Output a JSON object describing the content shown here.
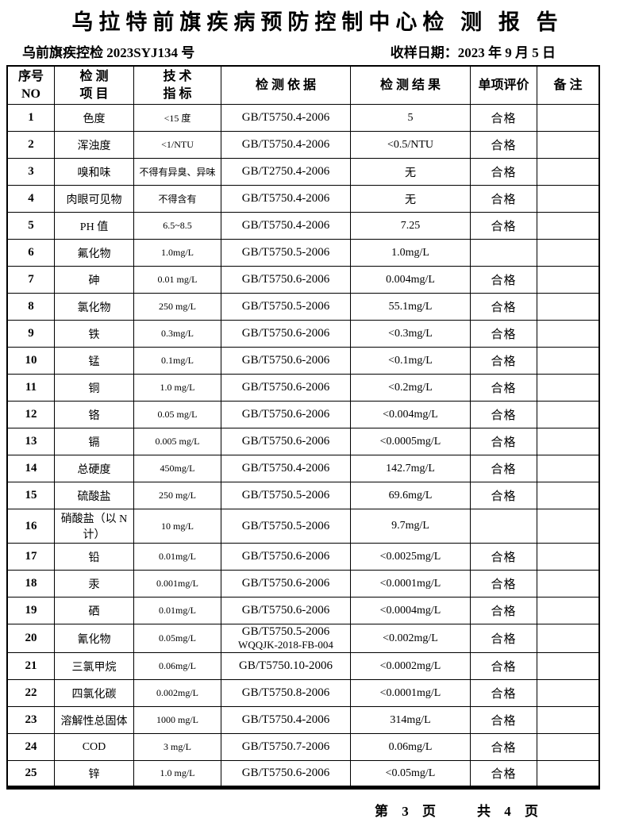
{
  "title": "乌拉特前旗疾病预防控制中心检 测 报 告",
  "doc_number": "乌前旗疾控检 2023SYJ134 号",
  "sample_date": "收样日期：2023 年 9 月 5 日",
  "table": {
    "headers": {
      "no_line1": "序号",
      "no_line2": "NO",
      "item_line1": "检 测",
      "item_line2": "项 目",
      "standard_line1": "技 术",
      "standard_line2": "指 标",
      "basis": "检 测 依 据",
      "result": "检 测 结 果",
      "evaluation": "单项评价",
      "remark": "备 注"
    },
    "rows": [
      {
        "no": "1",
        "item": "色度",
        "standard": "<15 度",
        "basis": "GB/T5750.4-2006",
        "result": "5",
        "evaluation": "合格",
        "remark": ""
      },
      {
        "no": "2",
        "item": "浑浊度",
        "standard": "<1/NTU",
        "basis": "GB/T5750.4-2006",
        "result": "<0.5/NTU",
        "evaluation": "合格",
        "remark": ""
      },
      {
        "no": "3",
        "item": "嗅和味",
        "standard": "不得有异臭、异味",
        "basis": "GB/T2750.4-2006",
        "result": "无",
        "evaluation": "合格",
        "remark": ""
      },
      {
        "no": "4",
        "item": "肉眼可见物",
        "standard": "不得含有",
        "basis": "GB/T5750.4-2006",
        "result": "无",
        "evaluation": "合格",
        "remark": ""
      },
      {
        "no": "5",
        "item": "PH 值",
        "standard": "6.5~8.5",
        "basis": "GB/T5750.4-2006",
        "result": "7.25",
        "evaluation": "合格",
        "remark": ""
      },
      {
        "no": "6",
        "item": "氟化物",
        "standard": "1.0mg/L",
        "basis": "GB/T5750.5-2006",
        "result": "1.0mg/L",
        "evaluation": "",
        "remark": ""
      },
      {
        "no": "7",
        "item": "砷",
        "standard": "0.01 mg/L",
        "basis": "GB/T5750.6-2006",
        "result": "0.004mg/L",
        "evaluation": "合格",
        "remark": ""
      },
      {
        "no": "8",
        "item": "氯化物",
        "standard": "250 mg/L",
        "basis": "GB/T5750.5-2006",
        "result": "55.1mg/L",
        "evaluation": "合格",
        "remark": ""
      },
      {
        "no": "9",
        "item": "铁",
        "standard": "0.3mg/L",
        "basis": "GB/T5750.6-2006",
        "result": "<0.3mg/L",
        "evaluation": "合格",
        "remark": ""
      },
      {
        "no": "10",
        "item": "锰",
        "standard": "0.1mg/L",
        "basis": "GB/T5750.6-2006",
        "result": "<0.1mg/L",
        "evaluation": "合格",
        "remark": ""
      },
      {
        "no": "11",
        "item": "铜",
        "standard": "1.0 mg/L",
        "basis": "GB/T5750.6-2006",
        "result": "<0.2mg/L",
        "evaluation": "合格",
        "remark": ""
      },
      {
        "no": "12",
        "item": "铬",
        "standard": "0.05 mg/L",
        "basis": "GB/T5750.6-2006",
        "result": "<0.004mg/L",
        "evaluation": "合格",
        "remark": ""
      },
      {
        "no": "13",
        "item": "镉",
        "standard": "0.005 mg/L",
        "basis": "GB/T5750.6-2006",
        "result": "<0.0005mg/L",
        "evaluation": "合格",
        "remark": ""
      },
      {
        "no": "14",
        "item": "总硬度",
        "standard": "450mg/L",
        "basis": "GB/T5750.4-2006",
        "result": "142.7mg/L",
        "evaluation": "合格",
        "remark": ""
      },
      {
        "no": "15",
        "item": "硫酸盐",
        "standard": "250 mg/L",
        "basis": "GB/T5750.5-2006",
        "result": "69.6mg/L",
        "evaluation": "合格",
        "remark": ""
      },
      {
        "no": "16",
        "item": "硝酸盐（以 N 计）",
        "standard": "10 mg/L",
        "basis": "GB/T5750.5-2006",
        "result": "9.7mg/L",
        "evaluation": "",
        "remark": ""
      },
      {
        "no": "17",
        "item": "铅",
        "standard": "0.01mg/L",
        "basis": "GB/T5750.6-2006",
        "result": "<0.0025mg/L",
        "evaluation": "合格",
        "remark": ""
      },
      {
        "no": "18",
        "item": "汞",
        "standard": "0.001mg/L",
        "basis": "GB/T5750.6-2006",
        "result": "<0.0001mg/L",
        "evaluation": "合格",
        "remark": ""
      },
      {
        "no": "19",
        "item": "硒",
        "standard": "0.01mg/L",
        "basis": "GB/T5750.6-2006",
        "result": "<0.0004mg/L",
        "evaluation": "合格",
        "remark": ""
      },
      {
        "no": "20",
        "item": "氰化物",
        "standard": "0.05mg/L",
        "basis": "GB/T5750.5-2006",
        "basis2": "WQQJK-2018-FB-004",
        "result": "<0.002mg/L",
        "evaluation": "合格",
        "remark": ""
      },
      {
        "no": "21",
        "item": "三氯甲烷",
        "standard": "0.06mg/L",
        "basis": "GB/T5750.10-2006",
        "result": "<0.0002mg/L",
        "evaluation": "合格",
        "remark": ""
      },
      {
        "no": "22",
        "item": "四氯化碳",
        "standard": "0.002mg/L",
        "basis": "GB/T5750.8-2006",
        "result": "<0.0001mg/L",
        "evaluation": "合格",
        "remark": ""
      },
      {
        "no": "23",
        "item": "溶解性总固体",
        "standard": "1000 mg/L",
        "basis": "GB/T5750.4-2006",
        "result": "314mg/L",
        "evaluation": "合格",
        "remark": ""
      },
      {
        "no": "24",
        "item": "COD",
        "standard": "3 mg/L",
        "basis": "GB/T5750.7-2006",
        "result": "0.06mg/L",
        "evaluation": "合格",
        "remark": ""
      },
      {
        "no": "25",
        "item": "锌",
        "standard": "1.0 mg/L",
        "basis": "GB/T5750.6-2006",
        "result": "<0.05mg/L",
        "evaluation": "合格",
        "remark": ""
      }
    ]
  },
  "footer": {
    "current_page": "第 3 页",
    "total_pages": "共 4 页"
  },
  "colors": {
    "ink": "#000000",
    "paper": "#ffffff"
  }
}
